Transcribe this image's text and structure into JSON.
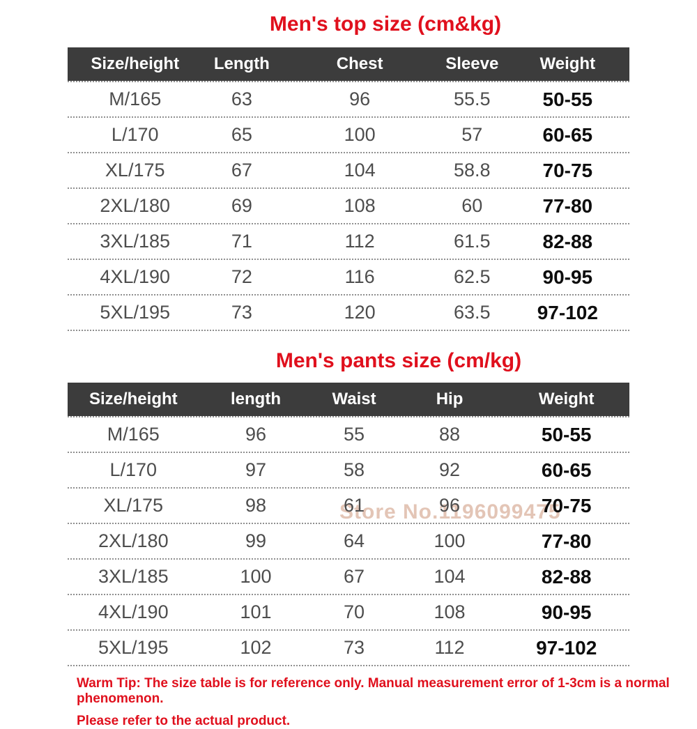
{
  "top_section": {
    "title": "Men's top size (cm&kg)",
    "table": {
      "headers": [
        "Size/height",
        "Length",
        "Chest",
        "Sleeve",
        "Weight"
      ],
      "rows": [
        [
          "M/165",
          "63",
          "96",
          "55.5",
          "50-55"
        ],
        [
          "L/170",
          "65",
          "100",
          "57",
          "60-65"
        ],
        [
          "XL/175",
          "67",
          "104",
          "58.8",
          "70-75"
        ],
        [
          "2XL/180",
          "69",
          "108",
          "60",
          "77-80"
        ],
        [
          "3XL/185",
          "71",
          "112",
          "61.5",
          "82-88"
        ],
        [
          "4XL/190",
          "72",
          "116",
          "62.5",
          "90-95"
        ],
        [
          "5XL/195",
          "73",
          "120",
          "63.5",
          "97-102"
        ]
      ]
    }
  },
  "pants_section": {
    "title": "Men's pants size (cm/kg)",
    "table": {
      "headers": [
        "Size/height",
        "length",
        "Waist",
        "Hip",
        "Weight"
      ],
      "rows": [
        [
          "M/165",
          "96",
          "55",
          "88",
          "50-55"
        ],
        [
          "L/170",
          "97",
          "58",
          "92",
          "60-65"
        ],
        [
          "XL/175",
          "98",
          "61",
          "96",
          "70-75"
        ],
        [
          "2XL/180",
          "99",
          "64",
          "100",
          "77-80"
        ],
        [
          "3XL/185",
          "100",
          "67",
          "104",
          "82-88"
        ],
        [
          "4XL/190",
          "101",
          "70",
          "108",
          "90-95"
        ],
        [
          "5XL/195",
          "102",
          "73",
          "112",
          "97-102"
        ]
      ]
    }
  },
  "watermark": "Store No.1196099475",
  "footer": {
    "line1": "Warm Tip: The size table is for reference only. Manual measurement error of 1-3cm is a normal phenomenon.",
    "line2": "Please refer to the actual product."
  },
  "colors": {
    "accent_red": "#e0101d",
    "header_bg": "#3c3c3c",
    "header_text": "#ffffff",
    "body_text": "#4d4d4d",
    "weight_text": "#0d0d0d",
    "divider": "#8f8f8f",
    "watermark": "#c98d6f"
  }
}
